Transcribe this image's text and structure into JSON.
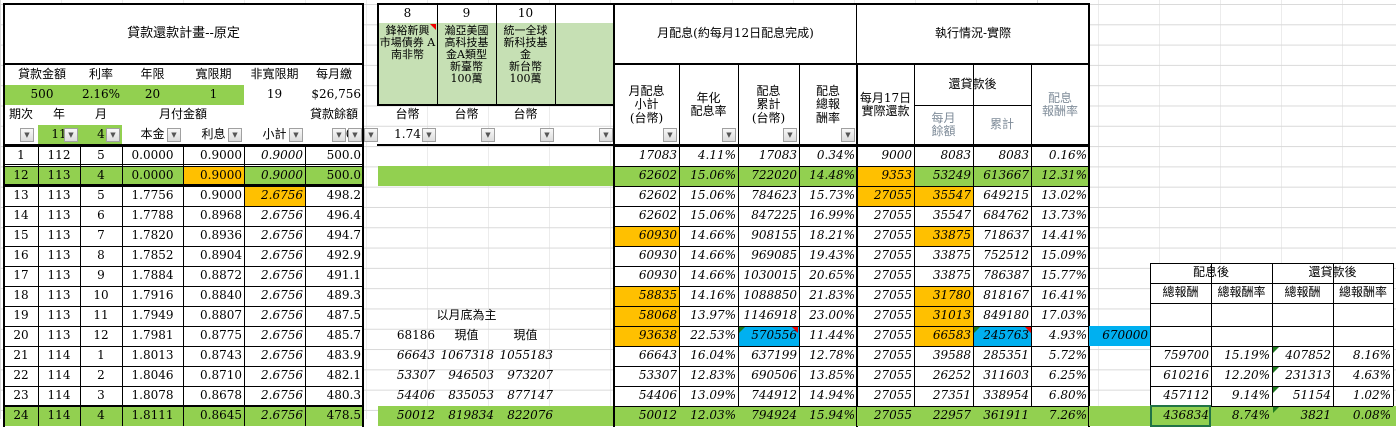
{
  "loan_plan": {
    "title": "貸款還款計畫--原定",
    "params_headers": [
      "貸款金額",
      "利率",
      "年限",
      "寬限期",
      "非寬限期",
      "每月繳"
    ],
    "params_values": [
      "500",
      "2.16%",
      "20",
      "1",
      "19",
      "$26,756"
    ],
    "col_headers": {
      "period": "期次",
      "year": "年",
      "month": "月",
      "monthly_payment": "月付金額",
      "balance": "貸款餘額"
    },
    "filter_row": {
      "period": "",
      "year": "11",
      "month": "4",
      "principal": "本金",
      "interest": "利息",
      "subtotal": "小計",
      "balance": "500"
    },
    "rows": [
      {
        "period": "1",
        "year": "112",
        "month": "5",
        "principal": "0.0000",
        "interest": "0.9000",
        "subtotal": "0.9000",
        "balance": "500.0"
      },
      {
        "period": "12",
        "year": "113",
        "month": "4",
        "principal": "0.0000",
        "interest": "0.9000",
        "subtotal": "0.9000",
        "balance": "500.0"
      },
      {
        "period": "13",
        "year": "113",
        "month": "5",
        "principal": "1.7756",
        "interest": "0.9000",
        "subtotal": "2.6756",
        "balance": "498.2"
      },
      {
        "period": "14",
        "year": "113",
        "month": "6",
        "principal": "1.7788",
        "interest": "0.8968",
        "subtotal": "2.6756",
        "balance": "496.4"
      },
      {
        "period": "15",
        "year": "113",
        "month": "7",
        "principal": "1.7820",
        "interest": "0.8936",
        "subtotal": "2.6756",
        "balance": "494.7"
      },
      {
        "period": "16",
        "year": "113",
        "month": "8",
        "principal": "1.7852",
        "interest": "0.8904",
        "subtotal": "2.6756",
        "balance": "492.9"
      },
      {
        "period": "17",
        "year": "113",
        "month": "9",
        "principal": "1.7884",
        "interest": "0.8872",
        "subtotal": "2.6756",
        "balance": "491.1"
      },
      {
        "period": "18",
        "year": "113",
        "month": "10",
        "principal": "1.7916",
        "interest": "0.8840",
        "subtotal": "2.6756",
        "balance": "489.3"
      },
      {
        "period": "19",
        "year": "113",
        "month": "11",
        "principal": "1.7949",
        "interest": "0.8807",
        "subtotal": "2.6756",
        "balance": "487.5"
      },
      {
        "period": "20",
        "year": "113",
        "month": "12",
        "principal": "1.7981",
        "interest": "0.8775",
        "subtotal": "2.6756",
        "balance": "485.7"
      },
      {
        "period": "21",
        "year": "114",
        "month": "1",
        "principal": "1.8013",
        "interest": "0.8743",
        "subtotal": "2.6756",
        "balance": "483.9"
      },
      {
        "period": "22",
        "year": "114",
        "month": "2",
        "principal": "1.8046",
        "interest": "0.8710",
        "subtotal": "2.6756",
        "balance": "482.1"
      },
      {
        "period": "23",
        "year": "114",
        "month": "3",
        "principal": "1.8078",
        "interest": "0.8678",
        "subtotal": "2.6756",
        "balance": "480.3"
      },
      {
        "period": "24",
        "year": "114",
        "month": "4",
        "principal": "1.8111",
        "interest": "0.8645",
        "subtotal": "2.6756",
        "balance": "478.5"
      }
    ]
  },
  "funds": {
    "numbers": [
      "8",
      "9",
      "10",
      ""
    ],
    "names": [
      "鋒裕新興\n市場債券 A\n南非幣",
      "瀚亞美國\n高科技基\n金A類型\n新臺幣\n100萬",
      "統一全球\n新科技基\n金\n新台幣\n100萬",
      ""
    ],
    "currency": [
      "台幣",
      "台幣",
      "台幣",
      ""
    ],
    "filter_value": "1.74",
    "note": "以月底為主",
    "pv_header": [
      "68186",
      "現值",
      "現值"
    ],
    "pv_rows": [
      [
        "66643",
        "1067318",
        "1055183"
      ],
      [
        "53307",
        "946503",
        "973207"
      ],
      [
        "54406",
        "835053",
        "877147"
      ],
      [
        "50012",
        "819834",
        "822076"
      ]
    ]
  },
  "dividend": {
    "title": "月配息(約每月12日配息完成)",
    "headers": [
      "月配息\n小計\n(台幣)",
      "年化\n配息率",
      "配息\n累計\n(台幣)",
      "配息\n總報\n酬率"
    ],
    "rows": [
      [
        "17083",
        "4.11%",
        "17083",
        "0.34%"
      ],
      [
        "62602",
        "15.06%",
        "722020",
        "14.48%"
      ],
      [
        "62602",
        "15.06%",
        "784623",
        "15.73%"
      ],
      [
        "62602",
        "15.06%",
        "847225",
        "16.99%"
      ],
      [
        "60930",
        "14.66%",
        "908155",
        "18.21%"
      ],
      [
        "60930",
        "14.66%",
        "969085",
        "19.43%"
      ],
      [
        "60930",
        "14.66%",
        "1030015",
        "20.65%"
      ],
      [
        "58835",
        "14.16%",
        "1088850",
        "21.83%"
      ],
      [
        "58068",
        "13.97%",
        "1146918",
        "23.00%"
      ],
      [
        "93638",
        "22.53%",
        "570556",
        "11.44%"
      ],
      [
        "66643",
        "16.04%",
        "637199",
        "12.78%"
      ],
      [
        "53307",
        "12.83%",
        "690506",
        "13.85%"
      ],
      [
        "54406",
        "13.09%",
        "744912",
        "14.94%"
      ],
      [
        "50012",
        "12.03%",
        "794924",
        "15.94%"
      ]
    ]
  },
  "execution": {
    "title": "執行情況-實際",
    "headers": {
      "repay": "每月17日\n實際還款",
      "after_repay": "還貸款後",
      "monthly_balance": "每月\n餘額",
      "cumulative": "累計",
      "return_rate": "配息\n報酬率"
    },
    "rows": [
      [
        "9000",
        "8083",
        "8083",
        "0.16%"
      ],
      [
        "9353",
        "53249",
        "613667",
        "12.31%"
      ],
      [
        "27055",
        "35547",
        "649215",
        "13.02%"
      ],
      [
        "27055",
        "35547",
        "684762",
        "13.73%"
      ],
      [
        "27055",
        "33875",
        "718637",
        "14.41%"
      ],
      [
        "27055",
        "33875",
        "752512",
        "15.09%"
      ],
      [
        "27055",
        "33875",
        "786387",
        "15.77%"
      ],
      [
        "27055",
        "31780",
        "818167",
        "16.41%"
      ],
      [
        "27055",
        "31013",
        "849180",
        "17.03%"
      ],
      [
        "27055",
        "66583",
        "245763",
        "4.93%"
      ],
      [
        "27055",
        "39588",
        "285351",
        "5.72%"
      ],
      [
        "27055",
        "26252",
        "311603",
        "6.25%"
      ],
      [
        "27055",
        "27351",
        "338954",
        "6.80%"
      ],
      [
        "27055",
        "22957",
        "361911",
        "7.26%"
      ]
    ],
    "side_value": "670000"
  },
  "summary": {
    "group_headers": [
      "配息後",
      "還貸款後"
    ],
    "sub_headers": [
      "總報酬",
      "總報酬率",
      "總報酬",
      "總報酬率"
    ],
    "rows": [
      [
        "",
        "",
        "",
        ""
      ],
      [
        "",
        "",
        "",
        ""
      ],
      [
        "759700",
        "15.19%",
        "407852",
        "8.16%"
      ],
      [
        "610216",
        "12.20%",
        "231313",
        "4.63%"
      ],
      [
        "457112",
        "9.14%",
        "51154",
        "1.02%"
      ],
      [
        "436834",
        "8.74%",
        "3821",
        "0.08%"
      ]
    ]
  },
  "colors": {
    "green": "#92d050",
    "orange": "#ffc000",
    "blue": "#00b0f0",
    "light_green": "#c6e0b4"
  }
}
